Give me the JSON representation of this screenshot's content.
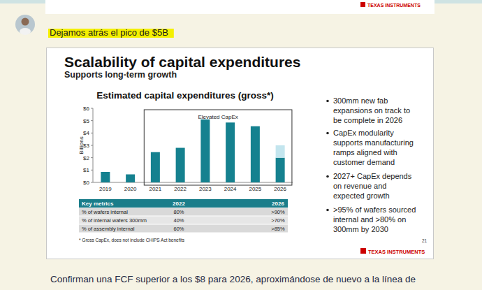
{
  "chart_data": {
    "type": "bar",
    "title": "Estimated capital expenditures (gross*)",
    "y_label": "Billions",
    "categories": [
      "2019",
      "2020",
      "2021",
      "2022",
      "2023",
      "2024",
      "2025",
      "2026"
    ],
    "series": [
      {
        "color": "#15818f",
        "values": [
          0.85,
          0.65,
          2.45,
          2.8,
          5.1,
          4.85,
          4.55,
          2.0
        ]
      },
      {
        "color": "#c3e5ee",
        "values": [
          null,
          null,
          null,
          null,
          null,
          null,
          null,
          1.0
        ]
      }
    ],
    "stacked": true,
    "ylim": [
      0,
      6
    ],
    "yticks": [
      {
        "value": 0,
        "label": "$0"
      },
      {
        "value": 1,
        "label": "$1"
      },
      {
        "value": 2,
        "label": "$2"
      },
      {
        "value": 3,
        "label": "$3"
      },
      {
        "value": 4,
        "label": "$4"
      },
      {
        "value": 5,
        "label": "$5"
      },
      {
        "value": 6,
        "label": "$6"
      }
    ],
    "grid": false,
    "annotations": [
      {
        "text": "Elevated CapEx",
        "from": "2021",
        "to": "2026"
      }
    ]
  },
  "header_logo": "TEXAS INSTRUMENTS",
  "post": {
    "highlight": "Dejamos atrás el pico de $5B",
    "body": "Confirman una FCF superior a los $8 para 2026, aproximándose de nuevo a la línea de"
  },
  "slide": {
    "title": "Scalability of capital expenditures",
    "subtitle": "Supports long-term growth",
    "bullets": [
      [
        "300mm new fab",
        "expansions on track to",
        "be complete in 2026"
      ],
      [
        "CapEx modularity",
        "supports manufacturing",
        "ramps aligned with",
        "customer demand"
      ],
      [
        "2027+ CapEx depends",
        "on revenue and",
        "expected growth"
      ],
      [
        ">95% of wafers sourced",
        "internal and >80% on",
        "300mm by 2030"
      ]
    ],
    "table": {
      "header": [
        "Key metrics",
        "2022",
        "2026"
      ],
      "rows": [
        [
          "% of wafers internal",
          "80%",
          ">90%"
        ],
        [
          "% of internal wafers 300mm",
          "40%",
          ">70%"
        ],
        [
          "% of assembly internal",
          "60%",
          ">85%"
        ]
      ]
    },
    "footnote": "* Gross CapEx, does not include CHIPS Act benefits",
    "page": "21",
    "logo": "TEXAS INSTRUMENTS"
  }
}
